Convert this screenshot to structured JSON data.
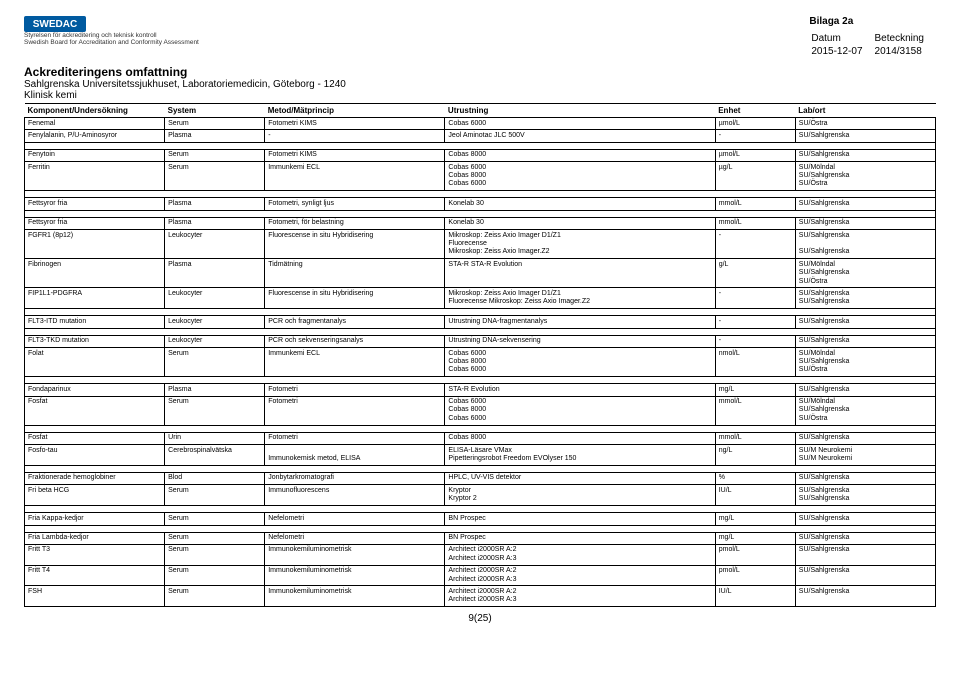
{
  "logo": {
    "text": "SWEDAC",
    "tagline": "Styrelsen för ackreditering och teknisk kontroll\nSwedish Board for Accreditation and Conformity Assessment"
  },
  "meta": {
    "bilaga": "Bilaga 2a",
    "datum_label": "Datum",
    "datum": "2015-12-07",
    "beteckning_label": "Beteckning",
    "beteckning": "2014/3158"
  },
  "titles": {
    "t1": "Ackrediteringens omfattning",
    "t2": "Sahlgrenska Universitetssjukhuset, Laboratoriemedicin, Göteborg - 1240",
    "t3": "Klinisk kemi"
  },
  "headers": [
    "Komponent/Undersökning",
    "System",
    "Metod/Mätprincip",
    "Utrustning",
    "Enhet",
    "Lab/ort"
  ],
  "groups": [
    [
      [
        "Fenemal",
        "Serum",
        "Fotometri KIMS",
        "Cobas 6000",
        "µmol/L",
        "SU/Östra"
      ],
      [
        "Fenylalanin, P/U-Aminosyror",
        "Plasma",
        "-",
        "Jeol Aminotac JLC 500V",
        "-",
        "SU/Sahlgrenska"
      ]
    ],
    [
      [
        "Fenytoin",
        "Serum",
        "Fotometri KIMS",
        "Cobas 8000",
        "µmol/L",
        "SU/Sahlgrenska"
      ],
      [
        "Ferritin",
        "Serum",
        "Immunkemi ECL",
        "Cobas 6000\nCobas 8000\nCobas 6000",
        "µg/L",
        "SU/Mölndal\nSU/Sahlgrenska\nSU/Östra"
      ]
    ],
    [
      [
        "Fettsyror fria",
        "Plasma",
        "Fotometri, synligt ljus",
        "Konelab 30",
        "mmol/L",
        "SU/Sahlgrenska"
      ]
    ],
    [
      [
        "Fettsyror fria",
        "Plasma",
        "Fotometri, för belastning",
        "Konelab 30",
        "mmol/L",
        "SU/Sahlgrenska"
      ],
      [
        "FGFR1 (8p12)",
        "Leukocyter",
        "Fluorescense in situ Hybridisering",
        "Mikroskop: Zeiss Axio Imager D1/Z1\nFluorecense\nMikroskop: Zeiss Axio Imager.Z2",
        "-",
        "SU/Sahlgrenska\n\nSU/Sahlgrenska"
      ],
      [
        "Fibrinogen",
        "Plasma",
        "Tidmätning",
        "STA-R STA-R Evolution",
        "g/L",
        "SU/Mölndal\nSU/Sahlgrenska\nSU/Östra"
      ],
      [
        "FIP1L1-PDGFRA",
        "Leukocyter",
        "Fluorescense in situ Hybridisering",
        "Mikroskop: Zeiss Axio Imager D1/Z1\nFluorecense Mikroskop: Zeiss Axio Imager.Z2",
        "-",
        "SU/Sahlgrenska\nSU/Sahlgrenska"
      ]
    ],
    [
      [
        "FLT3-ITD mutation",
        "Leukocyter",
        "PCR och fragmentanalys",
        "Utrustning DNA-fragmentanalys",
        "-",
        "SU/Sahlgrenska"
      ]
    ],
    [
      [
        "FLT3-TKD mutation",
        "Leukocyter",
        "PCR och sekvenseringsanalys",
        "Utrustning DNA-sekvensering",
        "-",
        "SU/Sahlgrenska"
      ],
      [
        "Folat",
        "Serum",
        "Immunkemi ECL",
        "Cobas 6000\nCobas 8000\nCobas 6000",
        "nmol/L",
        "SU/Mölndal\nSU/Sahlgrenska\nSU/Östra"
      ]
    ],
    [
      [
        "Fondaparinux",
        "Plasma",
        "Fotometri",
        "STA-R Evolution",
        "mg/L",
        "SU/Sahlgrenska"
      ],
      [
        "Fosfat",
        "Serum",
        "Fotometri",
        "Cobas 6000\nCobas 8000\nCobas 6000",
        "mmol/L",
        "SU/Mölndal\nSU/Sahlgrenska\nSU/Östra"
      ]
    ],
    [
      [
        "Fosfat",
        "Urin",
        "Fotometri",
        "Cobas 8000",
        "mmol/L",
        "SU/Sahlgrenska"
      ],
      [
        "Fosfo-tau",
        "Cerebrospinalvätska",
        "\nImmunokemisk metod, ELISA",
        "ELISA-Läsare VMax\nPipetteringsrobot Freedom EVOlyser 150",
        "ng/L",
        "SU/M Neurokemi\nSU/M Neurokemi"
      ]
    ],
    [
      [
        "Fraktionerade hemoglobiner",
        "Blod",
        "Jonbytarkromatografi",
        "HPLC, UV-VIS detektor",
        "%",
        "SU/Sahlgrenska"
      ],
      [
        "Fri beta HCG",
        "Serum",
        "Immunofluorescens",
        "Kryptor\nKryptor 2",
        "IU/L",
        "SU/Sahlgrenska\nSU/Sahlgrenska"
      ]
    ],
    [
      [
        "Fria Kappa-kedjor",
        "Serum",
        "Nefelometri",
        "BN Prospec",
        "mg/L",
        "SU/Sahlgrenska"
      ]
    ],
    [
      [
        "Fria Lambda-kedjor",
        "Serum",
        "Nefelometri",
        "BN Prospec",
        "mg/L",
        "SU/Sahlgrenska"
      ],
      [
        "Fritt T3",
        "Serum",
        "Immunokemiluminometrisk",
        "Architect i2000SR A:2\nArchitect i2000SR A:3",
        "pmol/L",
        "SU/Sahlgrenska"
      ],
      [
        "Fritt T4",
        "Serum",
        "Immunokemiluminometrisk",
        "Architect i2000SR A:2\nArchitect i2000SR A:3",
        "pmol/L",
        "SU/Sahlgrenska"
      ],
      [
        "FSH",
        "Serum",
        "Immunokemiluminometrisk",
        "Architect i2000SR A:2\nArchitect i2000SR A:3",
        "IU/L",
        "SU/Sahlgrenska"
      ]
    ]
  ],
  "page": "9(25)"
}
